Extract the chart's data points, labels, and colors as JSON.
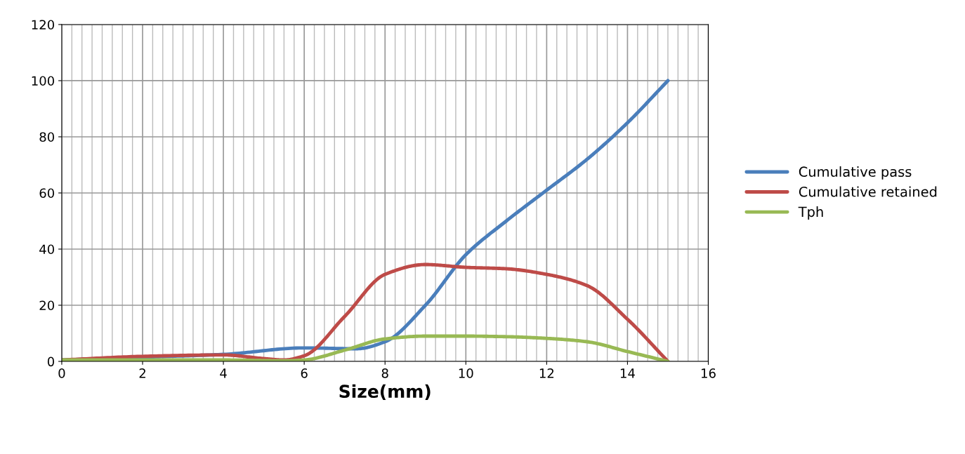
{
  "chart_data": {
    "type": "line",
    "xlabel": "Size(mm)",
    "xlim": [
      0,
      16
    ],
    "xticks": [
      0,
      2,
      4,
      6,
      8,
      10,
      12,
      14,
      16
    ],
    "ylim": [
      0,
      120
    ],
    "yticks": [
      0,
      20,
      40,
      60,
      80,
      100,
      120
    ],
    "grid": true,
    "legend": "right",
    "marker": "none",
    "line_style": "solid",
    "series": [
      {
        "name": "Cumulative pass",
        "color": "#4a7ebb",
        "x": [
          0,
          2,
          4,
          6,
          7.3,
          8,
          9,
          10,
          11,
          12,
          13,
          14,
          15
        ],
        "values": [
          0.5,
          1.5,
          2.5,
          4.8,
          4.5,
          7,
          20,
          38,
          50,
          61,
          72,
          85,
          100
        ]
      },
      {
        "name": "Cumulative retained",
        "color": "#be4b48",
        "x": [
          0,
          2,
          4,
          5,
          5.5,
          6,
          7,
          8,
          9,
          10,
          11,
          12,
          13,
          14,
          15
        ],
        "values": [
          0.5,
          1.8,
          2.3,
          1,
          0.5,
          2,
          16,
          31,
          34.5,
          33.5,
          33,
          31,
          27,
          15,
          0
        ]
      },
      {
        "name": "Tph",
        "color": "#98b954",
        "x": [
          0,
          2,
          4,
          5.5,
          6,
          7,
          8,
          9,
          10,
          11,
          12,
          13,
          14,
          15
        ],
        "values": [
          0.5,
          0.5,
          0.5,
          0.2,
          0.5,
          4,
          8,
          9,
          9,
          8.8,
          8.2,
          7,
          3.5,
          0
        ]
      }
    ]
  }
}
